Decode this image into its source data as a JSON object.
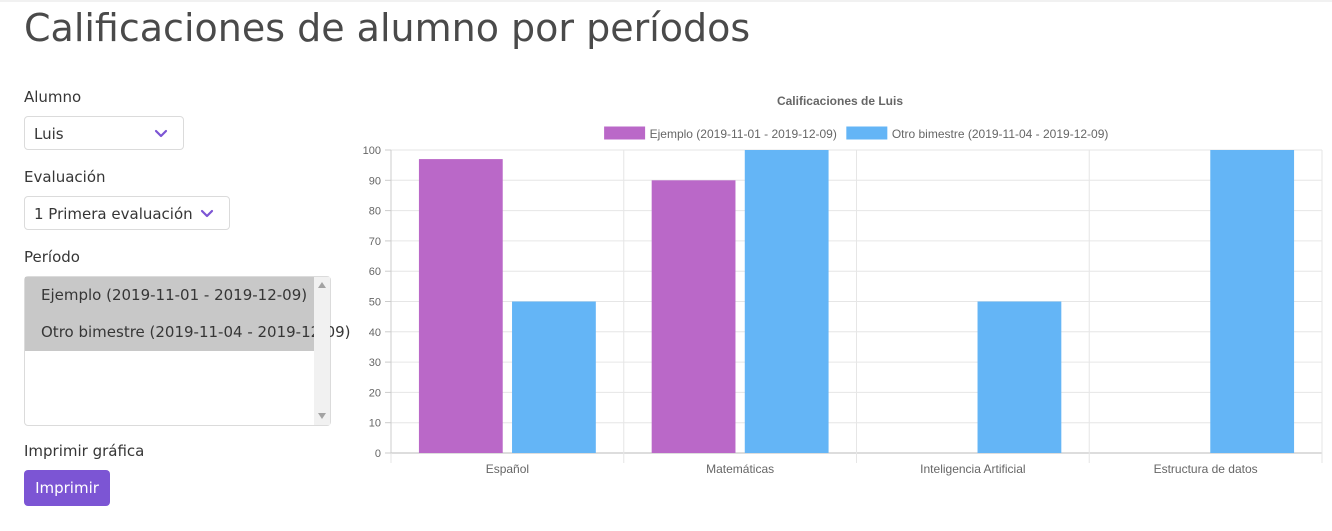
{
  "page": {
    "title": "Calificaciones de alumno por períodos"
  },
  "form": {
    "student_label": "Alumno",
    "student_value": "Luis",
    "evaluation_label": "Evaluación",
    "evaluation_value": "1 Primera evaluación",
    "period_label": "Período",
    "period_options": [
      "Ejemplo (2019-11-01 - 2019-12-09)",
      "Otro bimestre (2019-11-04 - 2019-12-09)"
    ],
    "print_label": "Imprimir gráfica",
    "print_button": "Imprimir"
  },
  "colors": {
    "accent": "#7c55d4",
    "selected_option": "#c8c8c8"
  },
  "icons": {
    "select_arrow": "chevron-down-icon",
    "scroll_up": "scroll-up-arrow-icon",
    "scroll_down": "scroll-down-arrow-icon"
  },
  "chart_data": {
    "type": "bar",
    "title": "Calificaciones de Luis",
    "categories": [
      "Español",
      "Matemáticas",
      "Inteligencia Artificial",
      "Estructura de datos"
    ],
    "series": [
      {
        "name": "Ejemplo (2019-11-01 - 2019-12-09)",
        "color": "#ba68c8",
        "values": [
          97,
          90,
          0,
          0
        ]
      },
      {
        "name": "Otro bimestre (2019-11-04 - 2019-12-09)",
        "color": "#64b5f6",
        "values": [
          50,
          100,
          50,
          100
        ]
      }
    ],
    "yticks": [
      0,
      10,
      20,
      30,
      40,
      50,
      60,
      70,
      80,
      90,
      100
    ],
    "ylim": [
      0,
      100
    ],
    "grid": true,
    "legend": "top"
  }
}
